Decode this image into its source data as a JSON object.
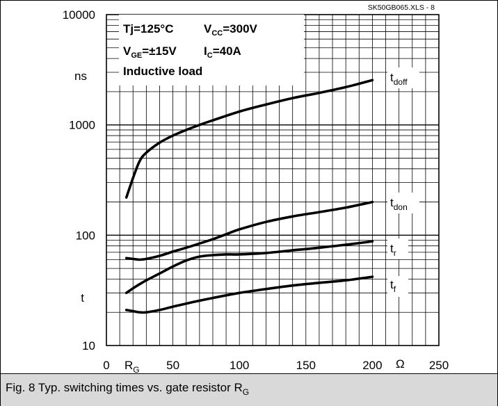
{
  "chart_data": {
    "type": "line",
    "file_label": "SK50GB065.XLS - 8",
    "conditions": {
      "line1_a": "Tj=125°C",
      "line1_b_main": "V",
      "line1_b_sub": "CC",
      "line1_b_rest": "=300V",
      "line2_a_main": "V",
      "line2_a_sub": "GE",
      "line2_a_rest": "=±15V",
      "line2_b_main": "I",
      "line2_b_sub": "C",
      "line2_b_rest": "=40A",
      "line3": "Inductive load"
    },
    "y_axis": {
      "scale": "log",
      "range": [
        10,
        10000
      ],
      "ticks": [
        {
          "value": 10000,
          "label": "10000"
        },
        {
          "value": 1000,
          "label": "1000"
        },
        {
          "value": 100,
          "label": "100"
        },
        {
          "value": 10,
          "label": "10"
        }
      ],
      "unit": "ns",
      "symbol": "t"
    },
    "x_axis": {
      "range": [
        0,
        250
      ],
      "ticks": [
        {
          "value": 0,
          "label": "0"
        },
        {
          "value": 50,
          "label": "50"
        },
        {
          "value": 100,
          "label": "100"
        },
        {
          "value": 150,
          "label": "150"
        },
        {
          "value": 200,
          "label": "200"
        },
        {
          "value": 250,
          "label": "250"
        }
      ],
      "symbol_main": "R",
      "symbol_sub": "G",
      "unit": "Ω"
    },
    "grid": true,
    "series": [
      {
        "name_main": "t",
        "name_sub": "doff",
        "x": [
          15,
          20,
          25,
          30,
          40,
          50,
          60,
          70,
          80,
          100,
          120,
          140,
          160,
          180,
          200
        ],
        "y": [
          220,
          330,
          470,
          560,
          690,
          800,
          900,
          1000,
          1100,
          1320,
          1530,
          1750,
          1950,
          2200,
          2550
        ]
      },
      {
        "name_main": "t",
        "name_sub": "don",
        "x": [
          15,
          20,
          25,
          30,
          40,
          50,
          60,
          70,
          80,
          90,
          100,
          120,
          140,
          160,
          180,
          200
        ],
        "y": [
          62,
          61,
          60,
          61,
          65,
          71,
          77,
          84,
          92,
          102,
          113,
          132,
          148,
          162,
          178,
          200
        ]
      },
      {
        "name_main": "t",
        "name_sub": "r",
        "x": [
          15,
          20,
          25,
          30,
          40,
          50,
          60,
          70,
          80,
          90,
          100,
          120,
          140,
          160,
          180,
          200
        ],
        "y": [
          30,
          33,
          36,
          39,
          45,
          52,
          59,
          64,
          66,
          67,
          67,
          69,
          73,
          77,
          82,
          88
        ]
      },
      {
        "name_main": "t",
        "name_sub": "f",
        "x": [
          15,
          20,
          25,
          30,
          40,
          50,
          60,
          70,
          80,
          100,
          120,
          140,
          160,
          180,
          200
        ],
        "y": [
          21,
          20.5,
          20,
          20,
          21,
          22.5,
          24,
          25.5,
          27,
          30,
          32.5,
          35,
          37,
          39,
          42
        ]
      }
    ]
  },
  "caption": {
    "text_main": "Fig. 8 Typ. switching times vs. gate resistor R",
    "text_sub": "G"
  }
}
